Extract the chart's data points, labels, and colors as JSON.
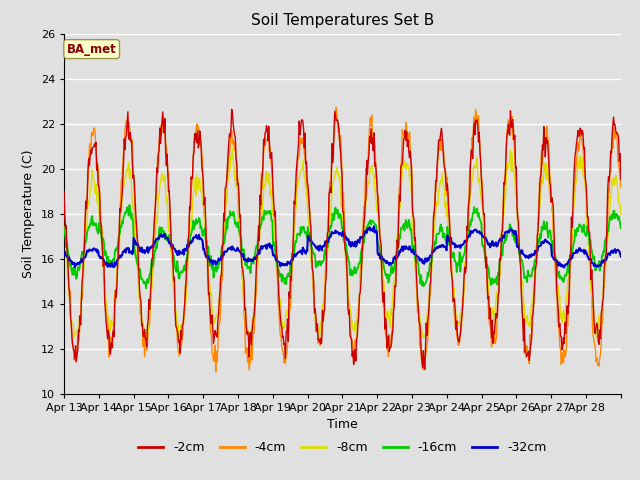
{
  "title": "Soil Temperatures Set B",
  "xlabel": "Time",
  "ylabel": "Soil Temperature (C)",
  "annotation": "BA_met",
  "ylim": [
    10,
    26
  ],
  "yticks": [
    10,
    12,
    14,
    16,
    18,
    20,
    22,
    24,
    26
  ],
  "series_colors": {
    "-2cm": "#cc0000",
    "-4cm": "#ff8800",
    "-8cm": "#dddd00",
    "-16cm": "#00cc00",
    "-32cm": "#0000cc"
  },
  "legend_labels": [
    "-2cm",
    "-4cm",
    "-8cm",
    "-16cm",
    "-32cm"
  ],
  "background_color": "#e0e0e0",
  "plot_bg_color": "#e0e0e0",
  "x_tick_labels": [
    "Apr 13",
    "Apr 14",
    "Apr 15",
    "Apr 16",
    "Apr 17",
    "Apr 18",
    "Apr 19",
    "Apr 20",
    "Apr 21",
    "Apr 22",
    "Apr 23",
    "Apr 24",
    "Apr 25",
    "Apr 26",
    "Apr 27",
    "Apr 28"
  ],
  "n_days": 16,
  "points_per_day": 48
}
